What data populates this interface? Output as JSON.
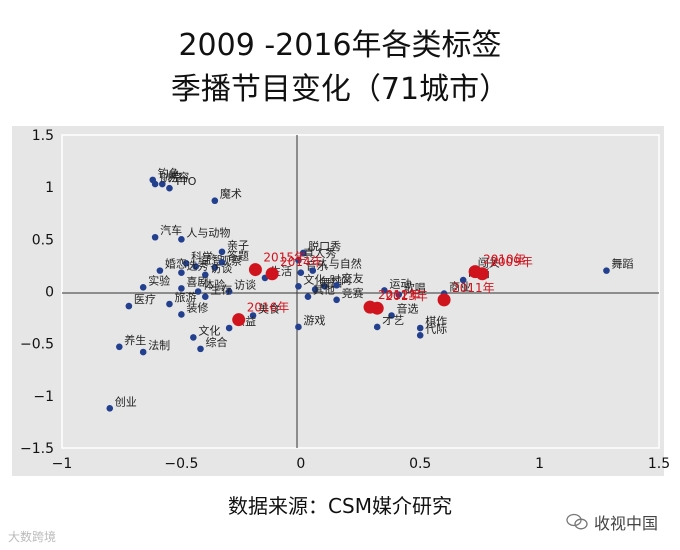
{
  "title_line1": "2009 -2016年各类标签",
  "title_line2": "季播节目变化（71城市）",
  "source": "数据来源：CSM媒介研究",
  "watermark_left": "大数跨境",
  "watermark_right": "收视中国",
  "colors": {
    "plot_bg": "#e6e6e6",
    "outer_bg": "#e6e6e6",
    "category_point": "#23408e",
    "year_point": "#d0141e",
    "year_label": "#d0141e",
    "axis_line": "#333333"
  },
  "chart_data": {
    "type": "scatter",
    "title": "2009 -2016年各类标签季播节目变化（71城市）",
    "xlim": [
      -1,
      1.5
    ],
    "ylim": [
      -1.5,
      1.5
    ],
    "xticks": [
      "−1",
      "−0.5",
      "0",
      "0.5",
      "1",
      "1.5"
    ],
    "yticks": [
      "1.5",
      "1",
      "0.5",
      "0",
      "−0.5",
      "−1",
      "−1.5"
    ],
    "xtick_values": [
      -1,
      -0.5,
      0,
      0.5,
      1,
      1.5
    ],
    "ytick_values": [
      1.5,
      1,
      0.5,
      0,
      -0.5,
      -1,
      -1.5
    ],
    "grid": false,
    "series": [
      {
        "name": "类别标签",
        "points": [
          {
            "label": "钓鱼",
            "x": -0.62,
            "y": 1.07
          },
          {
            "label": "易容",
            "x": -0.58,
            "y": 1.03
          },
          {
            "label": "航空",
            "x": -0.61,
            "y": 1.03
          },
          {
            "label": "TTO",
            "x": -0.55,
            "y": 0.99
          },
          {
            "label": "魔术",
            "x": -0.36,
            "y": 0.87
          },
          {
            "label": "汽车",
            "x": -0.61,
            "y": 0.52
          },
          {
            "label": "人与动物",
            "x": -0.5,
            "y": 0.5
          },
          {
            "label": "亲子",
            "x": -0.33,
            "y": 0.38
          },
          {
            "label": "科学",
            "x": -0.48,
            "y": 0.27
          },
          {
            "label": "益智",
            "x": -0.44,
            "y": 0.24
          },
          {
            "label": "观察",
            "x": -0.36,
            "y": 0.23
          },
          {
            "label": "答题",
            "x": -0.33,
            "y": 0.28
          },
          {
            "label": "婚恋",
            "x": -0.59,
            "y": 0.2
          },
          {
            "label": "选秀",
            "x": -0.5,
            "y": 0.18
          },
          {
            "label": "访谈",
            "x": -0.4,
            "y": 0.16
          },
          {
            "label": "实验",
            "x": -0.66,
            "y": 0.04
          },
          {
            "label": "喜剧",
            "x": -0.5,
            "y": 0.03
          },
          {
            "label": "体验",
            "x": -0.43,
            "y": 0.0
          },
          {
            "label": "访谈",
            "x": -0.3,
            "y": 0.0
          },
          {
            "label": "生存",
            "x": -0.4,
            "y": -0.05
          },
          {
            "label": "医疗",
            "x": -0.72,
            "y": -0.14
          },
          {
            "label": "旅游",
            "x": -0.55,
            "y": -0.12
          },
          {
            "label": "装修",
            "x": -0.5,
            "y": -0.22
          },
          {
            "label": "美食",
            "x": -0.2,
            "y": -0.23
          },
          {
            "label": "公益",
            "x": -0.3,
            "y": -0.35
          },
          {
            "label": "文化",
            "x": -0.45,
            "y": -0.44
          },
          {
            "label": "综合",
            "x": -0.42,
            "y": -0.55
          },
          {
            "label": "养生",
            "x": -0.76,
            "y": -0.53
          },
          {
            "label": "法制",
            "x": -0.66,
            "y": -0.58
          },
          {
            "label": "创业",
            "x": -0.8,
            "y": -1.12
          },
          {
            "label": "脱口秀",
            "x": 0.01,
            "y": 0.37
          },
          {
            "label": "真人秀",
            "x": -0.01,
            "y": 0.3
          },
          {
            "label": "生活",
            "x": -0.15,
            "y": 0.13
          },
          {
            "label": "音乐",
            "x": 0.0,
            "y": 0.18
          },
          {
            "label": "人与自然",
            "x": 0.05,
            "y": 0.2
          },
          {
            "label": "文化",
            "x": -0.01,
            "y": 0.05
          },
          {
            "label": "时尚",
            "x": 0.1,
            "y": 0.05
          },
          {
            "label": "舞蹈",
            "x": 0.06,
            "y": 0.02
          },
          {
            "label": "交友",
            "x": 0.15,
            "y": 0.06
          },
          {
            "label": "其他",
            "x": 0.03,
            "y": -0.05
          },
          {
            "label": "竞赛",
            "x": 0.15,
            "y": -0.08
          },
          {
            "label": "游戏",
            "x": -0.01,
            "y": -0.34
          },
          {
            "label": "运动",
            "x": 0.35,
            "y": 0.01
          },
          {
            "label": "歌唱",
            "x": 0.41,
            "y": -0.03
          },
          {
            "label": "音选",
            "x": 0.38,
            "y": -0.23
          },
          {
            "label": "才艺",
            "x": 0.32,
            "y": -0.34
          },
          {
            "label": "棋作",
            "x": 0.5,
            "y": -0.35
          },
          {
            "label": "代际",
            "x": 0.5,
            "y": -0.42
          },
          {
            "label": "商业",
            "x": 0.6,
            "y": -0.02
          },
          {
            "label": "闯关",
            "x": 0.72,
            "y": 0.21
          },
          {
            "label": "时尚",
            "x": 0.68,
            "y": 0.11
          },
          {
            "label": "舞蹈",
            "x": 1.28,
            "y": 0.2
          }
        ]
      },
      {
        "name": "年份",
        "points": [
          {
            "label": "2009年",
            "x": 0.76,
            "y": 0.17
          },
          {
            "label": "2010年",
            "x": 0.73,
            "y": 0.19
          },
          {
            "label": "2011年",
            "x": 0.6,
            "y": -0.08
          },
          {
            "label": "2012年",
            "x": 0.29,
            "y": -0.15
          },
          {
            "label": "2013年",
            "x": 0.32,
            "y": -0.16
          },
          {
            "label": "2014年",
            "x": -0.12,
            "y": 0.17
          },
          {
            "label": "2015年",
            "x": -0.19,
            "y": 0.21
          },
          {
            "label": "2016年",
            "x": -0.26,
            "y": -0.27
          }
        ]
      }
    ]
  }
}
